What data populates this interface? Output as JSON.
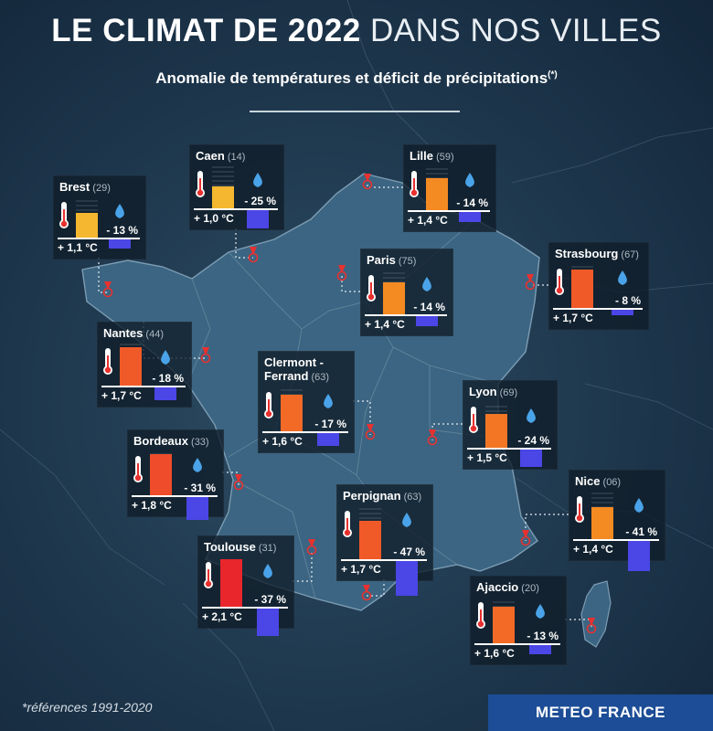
{
  "header": {
    "title_bold": "LE CLIMAT DE 2022",
    "title_light": "DANS NOS VILLES",
    "subtitle": "Anomalie de températures et déficit de précipitations",
    "subtitle_mark": "(*)"
  },
  "footer": {
    "note": "*références 1991-2020",
    "logo": "METEO FRANCE"
  },
  "colors": {
    "temp_1_0": "#f5b72f",
    "temp_1_1": "#f5b72f",
    "temp_1_4": "#f48a22",
    "temp_1_5": "#f27624",
    "temp_1_6": "#f26a25",
    "temp_1_7": "#f05a28",
    "temp_1_8": "#ee4c2a",
    "temp_2_1": "#e8262c",
    "precip_bar": "#4b46e6",
    "marker": "#e8312f"
  },
  "chart_data": {
    "type": "bar",
    "title": "LE CLIMAT DE 2022 DANS NOS VILLES",
    "subtitle": "Anomalie de températures et déficit de précipitations(*)",
    "series": [
      {
        "name": "Anomalie de températures",
        "unit": "°C"
      },
      {
        "name": "Déficit de précipitations",
        "unit": "%"
      }
    ],
    "cities": [
      {
        "id": "brest",
        "name": "Brest",
        "dept": "(29)",
        "temp": 1.1,
        "temp_label": "+ 1,1 °C",
        "precip": -13,
        "precip_label": "- 13 %",
        "temp_color": "#f5b72f"
      },
      {
        "id": "caen",
        "name": "Caen",
        "dept": "(14)",
        "temp": 1.0,
        "temp_label": "+ 1,0 °C",
        "precip": -25,
        "precip_label": "- 25 %",
        "temp_color": "#f5b72f"
      },
      {
        "id": "lille",
        "name": "Lille",
        "dept": "(59)",
        "temp": 1.4,
        "temp_label": "+ 1,4 °C",
        "precip": -14,
        "precip_label": "- 14 %",
        "temp_color": "#f48a22"
      },
      {
        "id": "paris",
        "name": "Paris",
        "dept": "(75)",
        "temp": 1.4,
        "temp_label": "+ 1,4 °C",
        "precip": -14,
        "precip_label": "- 14 %",
        "temp_color": "#f48a22"
      },
      {
        "id": "strasbourg",
        "name": "Strasbourg",
        "dept": "(67)",
        "temp": 1.7,
        "temp_label": "+ 1,7 °C",
        "precip": -8,
        "precip_label": "- 8 %",
        "temp_color": "#f05a28"
      },
      {
        "id": "nantes",
        "name": "Nantes",
        "dept": "(44)",
        "temp": 1.7,
        "temp_label": "+ 1,7 °C",
        "precip": -18,
        "precip_label": "- 18 %",
        "temp_color": "#f05a28"
      },
      {
        "id": "clermont",
        "name": "Clermont -",
        "name2": "Ferrand",
        "dept": "(63)",
        "temp": 1.6,
        "temp_label": "+ 1,6 °C",
        "precip": -17,
        "precip_label": "- 17 %",
        "temp_color": "#f26a25"
      },
      {
        "id": "lyon",
        "name": "Lyon",
        "dept": "(69)",
        "temp": 1.5,
        "temp_label": "+ 1,5 °C",
        "precip": -24,
        "precip_label": "- 24 %",
        "temp_color": "#f27624"
      },
      {
        "id": "bordeaux",
        "name": "Bordeaux",
        "dept": "(33)",
        "temp": 1.8,
        "temp_label": "+ 1,8 °C",
        "precip": -31,
        "precip_label": "- 31 %",
        "temp_color": "#ee4c2a"
      },
      {
        "id": "nice",
        "name": "Nice",
        "dept": "(06)",
        "temp": 1.4,
        "temp_label": "+ 1,4 °C",
        "precip": -41,
        "precip_label": "- 41 %",
        "temp_color": "#f48a22"
      },
      {
        "id": "perpignan",
        "name": "Perpignan",
        "dept": "(63)",
        "temp": 1.7,
        "temp_label": "+ 1,7 °C",
        "precip": -47,
        "precip_label": "- 47 %",
        "temp_color": "#f05a28"
      },
      {
        "id": "toulouse",
        "name": "Toulouse",
        "dept": "(31)",
        "temp": 2.1,
        "temp_label": "+ 2,1 °C",
        "precip": -37,
        "precip_label": "- 37 %",
        "temp_color": "#e8262c"
      },
      {
        "id": "ajaccio",
        "name": "Ajaccio",
        "dept": "(20)",
        "temp": 1.6,
        "temp_label": "+ 1,6 °C",
        "precip": -13,
        "precip_label": "- 13 %",
        "temp_color": "#f26a25"
      }
    ]
  }
}
